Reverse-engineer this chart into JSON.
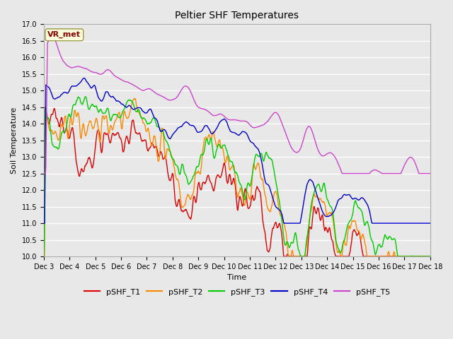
{
  "title": "Peltier SHF Temperatures",
  "xlabel": "Time",
  "ylabel": "Soil Temperature",
  "ylim": [
    10.0,
    17.0
  ],
  "yticks": [
    10.0,
    10.5,
    11.0,
    11.5,
    12.0,
    12.5,
    13.0,
    13.5,
    14.0,
    14.5,
    15.0,
    15.5,
    16.0,
    16.5,
    17.0
  ],
  "xtick_labels": [
    "Dec 3",
    "Dec 4",
    "Dec 5",
    "Dec 6",
    "Dec 7",
    "Dec 8",
    "Dec 9",
    "Dec 10",
    "Dec 11",
    "Dec 12",
    "Dec 13",
    "Dec 14",
    "Dec 15",
    "Dec 16",
    "Dec 17",
    "Dec 18"
  ],
  "colors": {
    "T1": "#dd0000",
    "T2": "#ff8800",
    "T3": "#00cc00",
    "T4": "#0000cc",
    "T5": "#cc44cc"
  },
  "legend_labels": [
    "pSHF_T1",
    "pSHF_T2",
    "pSHF_T3",
    "pSHF_T4",
    "pSHF_T5"
  ],
  "annotation_text": "VR_met",
  "annotation_color": "#880000",
  "annotation_bg": "#ffffdd",
  "plot_bg": "#e8e8e8",
  "grid_color": "#ffffff",
  "n_points": 960,
  "figsize": [
    6.4,
    4.8
  ],
  "dpi": 100
}
